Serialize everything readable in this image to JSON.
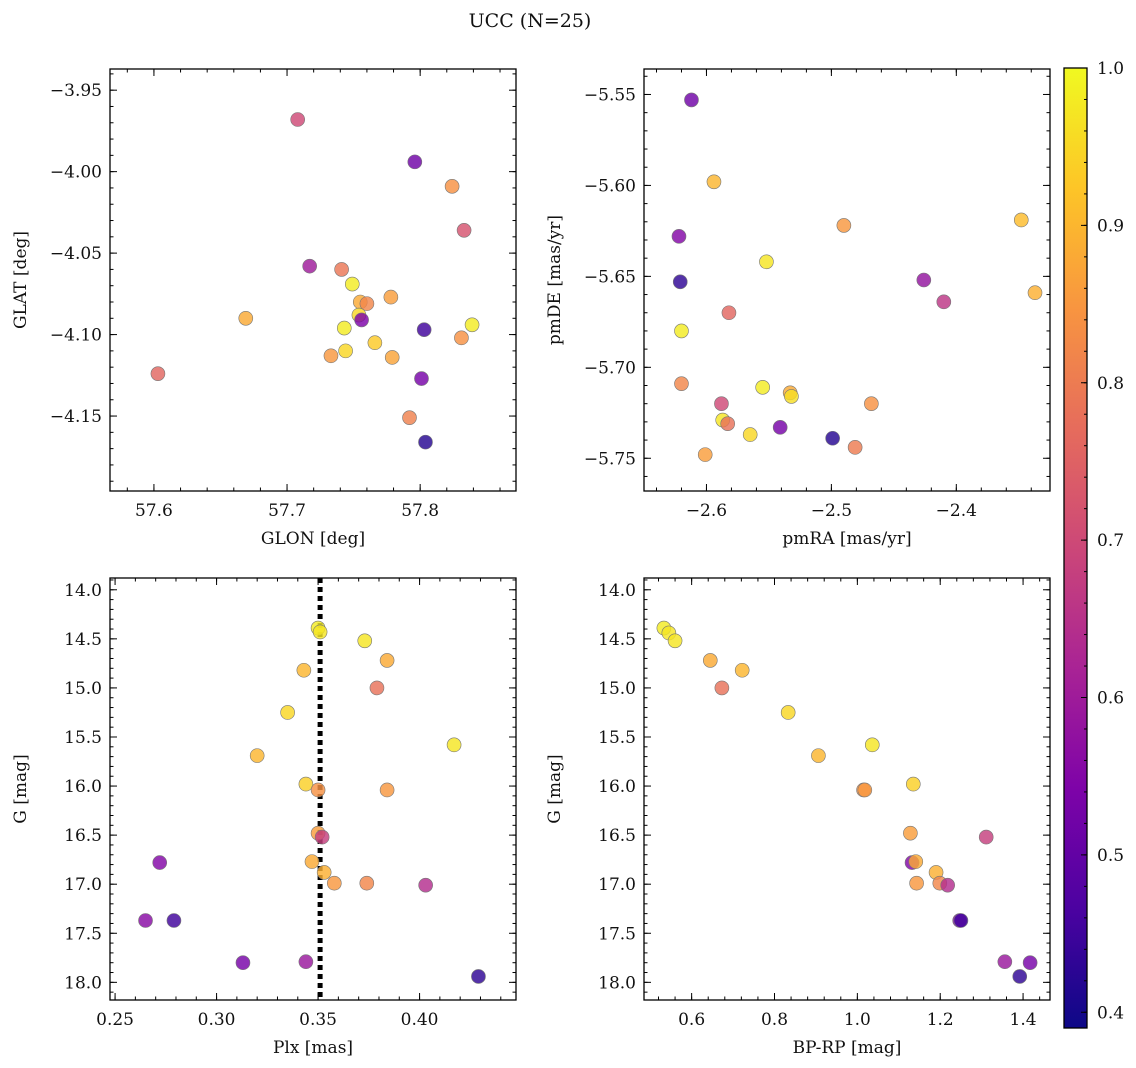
{
  "figure": {
    "title": "UCC (N=25)"
  },
  "colorbar": {
    "min": 0.39,
    "max": 1.0,
    "ticks": [
      0.4,
      0.5,
      0.6,
      0.7,
      0.8,
      0.9,
      1.0
    ],
    "tick_labels": [
      "0.4",
      "0.5",
      "0.6",
      "0.7",
      "0.8",
      "0.9",
      "1.0"
    ],
    "colormap": "plasma"
  },
  "chart_data": [
    {
      "type": "scatter",
      "xlabel": "GLON [deg]",
      "ylabel": "GLAT [deg]",
      "xlim": [
        57.567,
        57.872
      ],
      "ylim": [
        -4.196,
        -3.937
      ],
      "xticks": [
        57.6,
        57.7,
        57.8
      ],
      "xtick_labels": [
        "57.6",
        "57.7",
        "57.8"
      ],
      "yticks": [
        -3.95,
        -4.0,
        -4.05,
        -4.1,
        -4.15
      ],
      "ytick_labels": [
        "−3.95",
        "−4.00",
        "−4.05",
        "−4.10",
        "−4.15"
      ],
      "points": [
        {
          "x": 57.708,
          "y": -3.968,
          "c": 0.7
        },
        {
          "x": 57.796,
          "y": -3.994,
          "c": 0.52
        },
        {
          "x": 57.824,
          "y": -4.009,
          "c": 0.84
        },
        {
          "x": 57.833,
          "y": -4.036,
          "c": 0.72
        },
        {
          "x": 57.717,
          "y": -4.058,
          "c": 0.6
        },
        {
          "x": 57.741,
          "y": -4.06,
          "c": 0.79
        },
        {
          "x": 57.749,
          "y": -4.069,
          "c": 0.98
        },
        {
          "x": 57.778,
          "y": -4.077,
          "c": 0.86
        },
        {
          "x": 57.755,
          "y": -4.08,
          "c": 0.88
        },
        {
          "x": 57.76,
          "y": -4.081,
          "c": 0.82
        },
        {
          "x": 57.754,
          "y": -4.088,
          "c": 0.95
        },
        {
          "x": 57.756,
          "y": -4.091,
          "c": 0.54
        },
        {
          "x": 57.669,
          "y": -4.09,
          "c": 0.88
        },
        {
          "x": 57.743,
          "y": -4.096,
          "c": 0.98
        },
        {
          "x": 57.839,
          "y": -4.094,
          "c": 0.98
        },
        {
          "x": 57.803,
          "y": -4.097,
          "c": 0.45
        },
        {
          "x": 57.766,
          "y": -4.105,
          "c": 0.93
        },
        {
          "x": 57.744,
          "y": -4.11,
          "c": 0.95
        },
        {
          "x": 57.831,
          "y": -4.102,
          "c": 0.84
        },
        {
          "x": 57.733,
          "y": -4.113,
          "c": 0.85
        },
        {
          "x": 57.779,
          "y": -4.114,
          "c": 0.87
        },
        {
          "x": 57.603,
          "y": -4.124,
          "c": 0.76
        },
        {
          "x": 57.801,
          "y": -4.127,
          "c": 0.53
        },
        {
          "x": 57.792,
          "y": -4.151,
          "c": 0.81
        },
        {
          "x": 57.804,
          "y": -4.166,
          "c": 0.42
        }
      ]
    },
    {
      "type": "scatter",
      "xlabel": "pmRA [mas/yr]",
      "ylabel": "pmDE [mas/yr]",
      "xlim": [
        -2.65,
        -2.325
      ],
      "ylim": [
        -5.768,
        -5.536
      ],
      "xticks": [
        -2.6,
        -2.5,
        -2.4
      ],
      "xtick_labels": [
        "−2.6",
        "−2.5",
        "−2.4"
      ],
      "yticks": [
        -5.55,
        -5.6,
        -5.65,
        -5.7,
        -5.75
      ],
      "ytick_labels": [
        "−5.55",
        "−5.60",
        "−5.65",
        "−5.70",
        "−5.75"
      ],
      "points": [
        {
          "x": -2.612,
          "y": -5.553,
          "c": 0.52
        },
        {
          "x": -2.594,
          "y": -5.598,
          "c": 0.9
        },
        {
          "x": -2.348,
          "y": -5.619,
          "c": 0.91
        },
        {
          "x": -2.49,
          "y": -5.622,
          "c": 0.85
        },
        {
          "x": -2.622,
          "y": -5.628,
          "c": 0.55
        },
        {
          "x": -2.552,
          "y": -5.642,
          "c": 0.97
        },
        {
          "x": -2.426,
          "y": -5.652,
          "c": 0.58
        },
        {
          "x": -2.621,
          "y": -5.653,
          "c": 0.43
        },
        {
          "x": -2.337,
          "y": -5.659,
          "c": 0.89
        },
        {
          "x": -2.41,
          "y": -5.664,
          "c": 0.66
        },
        {
          "x": -2.582,
          "y": -5.67,
          "c": 0.76
        },
        {
          "x": -2.62,
          "y": -5.68,
          "c": 0.98
        },
        {
          "x": -2.62,
          "y": -5.709,
          "c": 0.82
        },
        {
          "x": -2.555,
          "y": -5.711,
          "c": 0.98
        },
        {
          "x": -2.533,
          "y": -5.714,
          "c": 0.88
        },
        {
          "x": -2.532,
          "y": -5.716,
          "c": 0.96
        },
        {
          "x": -2.468,
          "y": -5.72,
          "c": 0.84
        },
        {
          "x": -2.588,
          "y": -5.72,
          "c": 0.7
        },
        {
          "x": -2.587,
          "y": -5.729,
          "c": 0.97
        },
        {
          "x": -2.583,
          "y": -5.731,
          "c": 0.78
        },
        {
          "x": -2.541,
          "y": -5.733,
          "c": 0.53
        },
        {
          "x": -2.565,
          "y": -5.737,
          "c": 0.95
        },
        {
          "x": -2.499,
          "y": -5.739,
          "c": 0.42
        },
        {
          "x": -2.481,
          "y": -5.744,
          "c": 0.8
        },
        {
          "x": -2.601,
          "y": -5.748,
          "c": 0.86
        }
      ]
    },
    {
      "type": "scatter",
      "xlabel": "Plx [mas]",
      "ylabel": "G [mag]",
      "xlim": [
        0.2475,
        0.4475
      ],
      "ylim": [
        18.18,
        13.88
      ],
      "y_inverted": true,
      "xticks": [
        0.25,
        0.3,
        0.35,
        0.4
      ],
      "xtick_labels": [
        "0.25",
        "0.30",
        "0.35",
        "0.40"
      ],
      "yticks": [
        14.0,
        14.5,
        15.0,
        15.5,
        16.0,
        16.5,
        17.0,
        17.5,
        18.0
      ],
      "ytick_labels": [
        "14.0",
        "14.5",
        "15.0",
        "15.5",
        "16.0",
        "16.5",
        "17.0",
        "17.5",
        "18.0"
      ],
      "vline": {
        "x": 0.351,
        "style": "dotted",
        "color": "#000000"
      },
      "points": [
        {
          "x": 0.35,
          "y": 14.39,
          "c": 0.98
        },
        {
          "x": 0.351,
          "y": 14.43,
          "c": 0.97
        },
        {
          "x": 0.373,
          "y": 14.52,
          "c": 0.97
        },
        {
          "x": 0.384,
          "y": 14.72,
          "c": 0.88
        },
        {
          "x": 0.343,
          "y": 14.82,
          "c": 0.9
        },
        {
          "x": 0.379,
          "y": 15.0,
          "c": 0.78
        },
        {
          "x": 0.335,
          "y": 15.25,
          "c": 0.95
        },
        {
          "x": 0.417,
          "y": 15.58,
          "c": 0.97
        },
        {
          "x": 0.32,
          "y": 15.69,
          "c": 0.9
        },
        {
          "x": 0.344,
          "y": 15.98,
          "c": 0.94
        },
        {
          "x": 0.35,
          "y": 16.04,
          "c": 0.84
        },
        {
          "x": 0.384,
          "y": 16.04,
          "c": 0.85
        },
        {
          "x": 0.35,
          "y": 16.48,
          "c": 0.86
        },
        {
          "x": 0.352,
          "y": 16.52,
          "c": 0.68
        },
        {
          "x": 0.272,
          "y": 16.78,
          "c": 0.55
        },
        {
          "x": 0.347,
          "y": 16.77,
          "c": 0.88
        },
        {
          "x": 0.353,
          "y": 16.88,
          "c": 0.89
        },
        {
          "x": 0.358,
          "y": 16.99,
          "c": 0.85
        },
        {
          "x": 0.374,
          "y": 16.99,
          "c": 0.82
        },
        {
          "x": 0.403,
          "y": 17.01,
          "c": 0.64
        },
        {
          "x": 0.265,
          "y": 17.37,
          "c": 0.56
        },
        {
          "x": 0.279,
          "y": 17.37,
          "c": 0.45
        },
        {
          "x": 0.313,
          "y": 17.8,
          "c": 0.53
        },
        {
          "x": 0.344,
          "y": 17.79,
          "c": 0.59
        },
        {
          "x": 0.429,
          "y": 17.94,
          "c": 0.43
        }
      ]
    },
    {
      "type": "scatter",
      "xlabel": "BP-RP [mag]",
      "ylabel": "G [mag]",
      "xlim": [
        0.485,
        1.465
      ],
      "ylim": [
        18.18,
        13.88
      ],
      "y_inverted": true,
      "xticks": [
        0.6,
        0.8,
        1.0,
        1.2,
        1.4
      ],
      "xtick_labels": [
        "0.6",
        "0.8",
        "1.0",
        "1.2",
        "1.4"
      ],
      "yticks": [
        14.0,
        14.5,
        15.0,
        15.5,
        16.0,
        16.5,
        17.0,
        17.5,
        18.0
      ],
      "ytick_labels": [
        "14.0",
        "14.5",
        "15.0",
        "15.5",
        "16.0",
        "16.5",
        "17.0",
        "17.5",
        "18.0"
      ],
      "points": [
        {
          "x": 0.533,
          "y": 14.39,
          "c": 0.98
        },
        {
          "x": 0.545,
          "y": 14.44,
          "c": 0.97
        },
        {
          "x": 0.56,
          "y": 14.52,
          "c": 0.97
        },
        {
          "x": 0.645,
          "y": 14.72,
          "c": 0.88
        },
        {
          "x": 0.722,
          "y": 14.82,
          "c": 0.9
        },
        {
          "x": 0.673,
          "y": 15.0,
          "c": 0.78
        },
        {
          "x": 0.833,
          "y": 15.25,
          "c": 0.95
        },
        {
          "x": 0.906,
          "y": 15.69,
          "c": 0.9
        },
        {
          "x": 1.036,
          "y": 15.58,
          "c": 0.97
        },
        {
          "x": 1.015,
          "y": 16.04,
          "c": 0.84
        },
        {
          "x": 1.018,
          "y": 16.04,
          "c": 0.85
        },
        {
          "x": 1.135,
          "y": 15.98,
          "c": 0.94
        },
        {
          "x": 1.128,
          "y": 16.48,
          "c": 0.86
        },
        {
          "x": 1.311,
          "y": 16.52,
          "c": 0.68
        },
        {
          "x": 1.132,
          "y": 16.78,
          "c": 0.55
        },
        {
          "x": 1.141,
          "y": 16.77,
          "c": 0.88
        },
        {
          "x": 1.19,
          "y": 16.88,
          "c": 0.89
        },
        {
          "x": 1.143,
          "y": 16.99,
          "c": 0.85
        },
        {
          "x": 1.199,
          "y": 16.99,
          "c": 0.82
        },
        {
          "x": 1.218,
          "y": 17.01,
          "c": 0.64
        },
        {
          "x": 1.247,
          "y": 17.37,
          "c": 0.56
        },
        {
          "x": 1.25,
          "y": 17.37,
          "c": 0.45
        },
        {
          "x": 1.356,
          "y": 17.79,
          "c": 0.59
        },
        {
          "x": 1.417,
          "y": 17.8,
          "c": 0.53
        },
        {
          "x": 1.392,
          "y": 17.94,
          "c": 0.43
        }
      ]
    }
  ]
}
